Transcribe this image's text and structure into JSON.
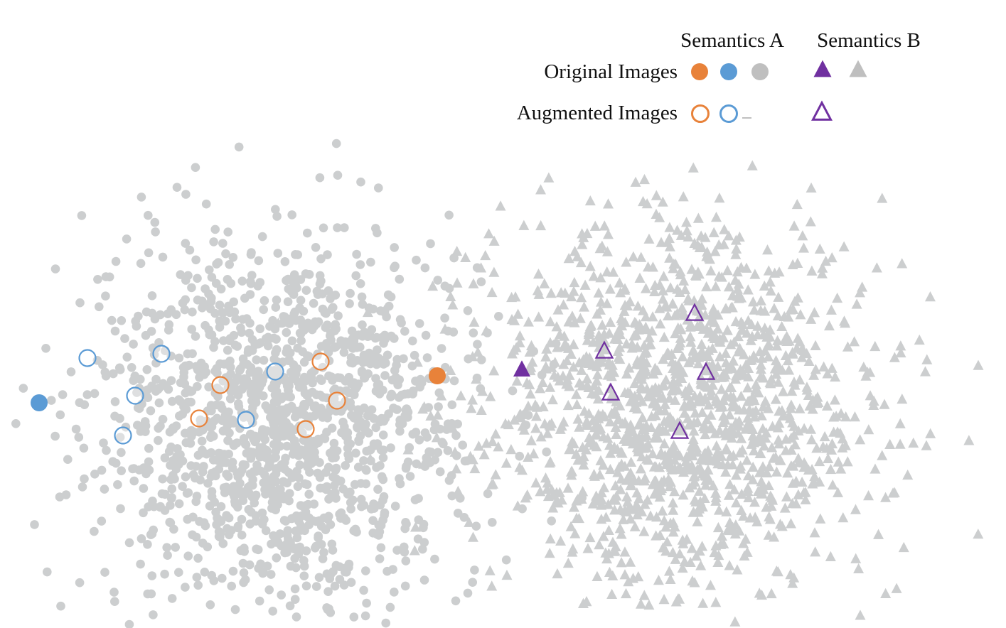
{
  "chart_data": {
    "type": "scatter",
    "title": "",
    "xlabel": "",
    "ylabel": "",
    "grid": false,
    "axes_visible": false,
    "legend_position": "top-right",
    "legend": {
      "column_headers": [
        "Semantics A",
        "Semantics B"
      ],
      "row_labels": [
        "Original Images",
        "Augmented Images"
      ]
    },
    "colors": {
      "orange": "#E8823A",
      "blue": "#5B9BD5",
      "purple": "#7030A0",
      "gray": "#CCCECF",
      "gray_legend": "#BFBFBF"
    },
    "background_clusters": [
      {
        "name": "Semantics A",
        "marker": "circle",
        "color": "#CCCECF",
        "count": 1500,
        "center": [
          400,
          600
        ],
        "spread": [
          130,
          130
        ]
      },
      {
        "name": "Semantics B",
        "marker": "triangle",
        "color": "#CCCECF",
        "count": 1500,
        "center": [
          950,
          570
        ],
        "spread": [
          135,
          130
        ]
      }
    ],
    "series": [
      {
        "semantics": "A",
        "kind": "original",
        "marker": "circle",
        "filled": true,
        "color": "#E8823A",
        "points": [
          [
            615,
            529
          ]
        ]
      },
      {
        "semantics": "A",
        "kind": "augmented",
        "marker": "circle",
        "filled": false,
        "color": "#E8823A",
        "points": [
          [
            310,
            542
          ],
          [
            280,
            589
          ],
          [
            451,
            509
          ],
          [
            474,
            564
          ],
          [
            430,
            604
          ]
        ]
      },
      {
        "semantics": "A",
        "kind": "original",
        "marker": "circle",
        "filled": true,
        "color": "#5B9BD5",
        "points": [
          [
            55,
            567
          ]
        ]
      },
      {
        "semantics": "A",
        "kind": "augmented",
        "marker": "circle",
        "filled": false,
        "color": "#5B9BD5",
        "points": [
          [
            123,
            504
          ],
          [
            227,
            498
          ],
          [
            190,
            557
          ],
          [
            173,
            613
          ],
          [
            387,
            523
          ],
          [
            346,
            591
          ]
        ]
      },
      {
        "semantics": "B",
        "kind": "original",
        "marker": "triangle",
        "filled": true,
        "color": "#7030A0",
        "points": [
          [
            734,
            520
          ]
        ]
      },
      {
        "semantics": "B",
        "kind": "augmented",
        "marker": "triangle",
        "filled": false,
        "color": "#7030A0",
        "points": [
          [
            977,
            441
          ],
          [
            850,
            494
          ],
          [
            993,
            524
          ],
          [
            859,
            553
          ],
          [
            956,
            607
          ]
        ]
      }
    ]
  }
}
